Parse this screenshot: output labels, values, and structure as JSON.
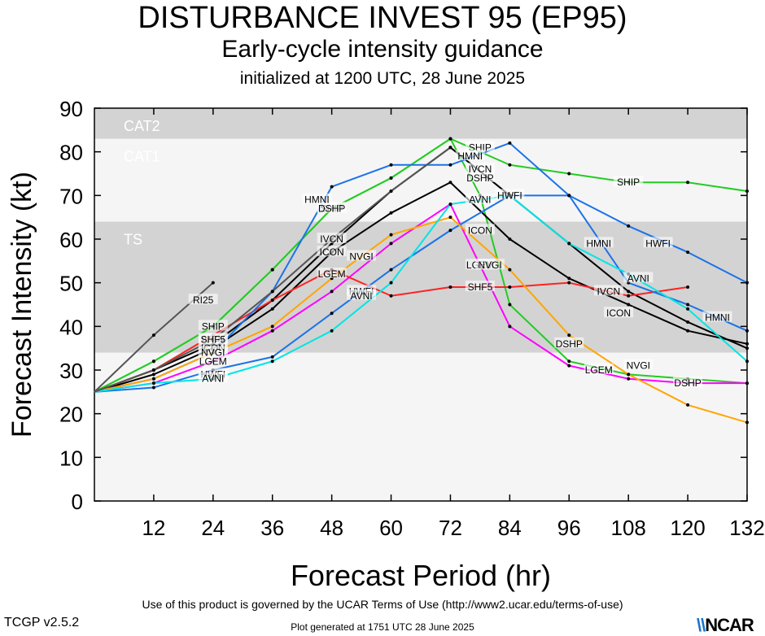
{
  "header": {
    "title": "DISTURBANCE INVEST 95 (EP95)",
    "subtitle": "Early-cycle intensity guidance",
    "init": "initialized at 1200 UTC, 28 June 2025"
  },
  "footer": {
    "terms": "Use of this product is governed by the UCAR Terms of Use (http://www2.ucar.edu/terms-of-use)",
    "version": "TCGP v2.5.2",
    "generated": "Plot generated at 1751 UTC   28 June 2025",
    "logo": "NCAR"
  },
  "chart_data": {
    "type": "line",
    "xlabel": "Forecast Period (hr)",
    "ylabel": "Forecast Intensity (kt)",
    "xlim": [
      0,
      132
    ],
    "ylim": [
      0,
      90
    ],
    "xticks": [
      12,
      24,
      36,
      48,
      60,
      72,
      84,
      96,
      108,
      120,
      132
    ],
    "yticks": [
      0,
      10,
      20,
      30,
      40,
      50,
      60,
      70,
      80,
      90
    ],
    "bands": [
      {
        "label": "TS",
        "from": 34,
        "to": 64,
        "color": "#d3d3d3"
      },
      {
        "label": "CAT1",
        "from": 64,
        "to": 83,
        "color": "#f5f5f5"
      },
      {
        "label": "CAT2",
        "from": 83,
        "to": 90,
        "color": "#d3d3d3"
      }
    ],
    "series": [
      {
        "name": "SHIP",
        "color": "#22cc22",
        "labels": [
          [
            24,
            40
          ],
          [
            48,
            67
          ],
          [
            78,
            81
          ],
          [
            108,
            73
          ]
        ],
        "points": [
          [
            0,
            25
          ],
          [
            12,
            32
          ],
          [
            24,
            40
          ],
          [
            36,
            53
          ],
          [
            48,
            67
          ],
          [
            60,
            74
          ],
          [
            72,
            83
          ],
          [
            84,
            77
          ],
          [
            96,
            75
          ],
          [
            108,
            73
          ],
          [
            120,
            73
          ],
          [
            132,
            71
          ]
        ]
      },
      {
        "name": "DSHP",
        "color": "#22cc22",
        "labels": [
          [
            48,
            67
          ],
          [
            78,
            74
          ],
          [
            96,
            36
          ],
          [
            120,
            27
          ]
        ],
        "points": [
          [
            0,
            25
          ],
          [
            12,
            32
          ],
          [
            24,
            40
          ],
          [
            36,
            53
          ],
          [
            48,
            67
          ],
          [
            60,
            74
          ],
          [
            72,
            83
          ],
          [
            78,
            70
          ],
          [
            84,
            45
          ],
          [
            96,
            32
          ],
          [
            108,
            29
          ],
          [
            120,
            28
          ],
          [
            132,
            27
          ]
        ]
      },
      {
        "name": "LGEM",
        "color": "#ff00ff",
        "labels": [
          [
            24,
            32
          ],
          [
            48,
            52
          ],
          [
            78,
            54
          ],
          [
            102,
            30
          ]
        ],
        "points": [
          [
            0,
            25
          ],
          [
            12,
            27
          ],
          [
            24,
            32
          ],
          [
            36,
            39
          ],
          [
            48,
            48
          ],
          [
            60,
            59
          ],
          [
            72,
            68
          ],
          [
            84,
            40
          ],
          [
            96,
            31
          ],
          [
            108,
            28
          ],
          [
            120,
            27
          ],
          [
            132,
            27
          ]
        ]
      },
      {
        "name": "IVCN",
        "color": "#000000",
        "labels": [
          [
            24,
            37
          ],
          [
            48,
            60
          ],
          [
            78,
            76
          ],
          [
            104,
            48
          ]
        ],
        "points": [
          [
            0,
            25
          ],
          [
            12,
            30
          ],
          [
            24,
            36
          ],
          [
            36,
            46
          ],
          [
            48,
            59
          ],
          [
            60,
            71
          ],
          [
            72,
            81
          ],
          [
            84,
            70
          ],
          [
            96,
            59
          ],
          [
            108,
            48
          ],
          [
            120,
            41
          ],
          [
            132,
            35
          ]
        ]
      },
      {
        "name": "ICON",
        "color": "#000000",
        "labels": [
          [
            24,
            35
          ],
          [
            48,
            57
          ],
          [
            78,
            62
          ],
          [
            106,
            43
          ]
        ],
        "points": [
          [
            0,
            25
          ],
          [
            12,
            29
          ],
          [
            24,
            35
          ],
          [
            36,
            44
          ],
          [
            48,
            57
          ],
          [
            60,
            66
          ],
          [
            72,
            73
          ],
          [
            84,
            60
          ],
          [
            96,
            51
          ],
          [
            108,
            45
          ],
          [
            120,
            39
          ],
          [
            132,
            36
          ]
        ]
      },
      {
        "name": "SHF5",
        "color": "#ff2222",
        "labels": [
          [
            24,
            37
          ],
          [
            78,
            49
          ]
        ],
        "points": [
          [
            0,
            25
          ],
          [
            12,
            30
          ],
          [
            24,
            38
          ],
          [
            36,
            46
          ],
          [
            48,
            53
          ],
          [
            60,
            47
          ],
          [
            72,
            49
          ],
          [
            84,
            49
          ],
          [
            96,
            50
          ],
          [
            108,
            47
          ],
          [
            120,
            49
          ]
        ]
      },
      {
        "name": "HWFI",
        "color": "#1a73e8",
        "labels": [
          [
            24,
            29
          ],
          [
            54,
            48
          ],
          [
            84,
            70
          ],
          [
            114,
            59
          ]
        ],
        "points": [
          [
            0,
            25
          ],
          [
            12,
            26
          ],
          [
            24,
            30
          ],
          [
            36,
            33
          ],
          [
            48,
            43
          ],
          [
            60,
            53
          ],
          [
            72,
            62
          ],
          [
            84,
            70
          ],
          [
            96,
            70
          ],
          [
            108,
            63
          ],
          [
            120,
            57
          ],
          [
            132,
            50
          ]
        ]
      },
      {
        "name": "HMNI",
        "color": "#1a73e8",
        "labels": [
          [
            45,
            69
          ],
          [
            76,
            79
          ],
          [
            102,
            59
          ],
          [
            126,
            42
          ]
        ],
        "points": [
          [
            0,
            25
          ],
          [
            12,
            28
          ],
          [
            24,
            34
          ],
          [
            36,
            48
          ],
          [
            48,
            72
          ],
          [
            60,
            77
          ],
          [
            72,
            77
          ],
          [
            84,
            82
          ],
          [
            96,
            70
          ],
          [
            108,
            50
          ],
          [
            120,
            45
          ],
          [
            132,
            39
          ]
        ]
      },
      {
        "name": "NVGI",
        "color": "#ffa500",
        "labels": [
          [
            24,
            34
          ],
          [
            54,
            56
          ],
          [
            80,
            54
          ],
          [
            110,
            31
          ]
        ],
        "points": [
          [
            0,
            25
          ],
          [
            12,
            28
          ],
          [
            24,
            34
          ],
          [
            36,
            40
          ],
          [
            48,
            51
          ],
          [
            60,
            61
          ],
          [
            72,
            65
          ],
          [
            84,
            53
          ],
          [
            96,
            38
          ],
          [
            108,
            29
          ],
          [
            120,
            22
          ],
          [
            132,
            18
          ]
        ]
      },
      {
        "name": "AVNI",
        "color": "#00e5e5",
        "labels": [
          [
            24,
            28
          ],
          [
            54,
            47
          ],
          [
            78,
            69
          ],
          [
            110,
            51
          ]
        ],
        "points": [
          [
            0,
            25
          ],
          [
            12,
            27
          ],
          [
            24,
            28
          ],
          [
            36,
            32
          ],
          [
            48,
            39
          ],
          [
            60,
            50
          ],
          [
            72,
            68
          ],
          [
            84,
            70
          ],
          [
            96,
            59
          ],
          [
            108,
            52
          ],
          [
            120,
            44
          ],
          [
            132,
            32
          ]
        ]
      },
      {
        "name": "RI25",
        "color": "#555555",
        "labels": [
          [
            22,
            46
          ]
        ],
        "points": [
          [
            0,
            25
          ],
          [
            12,
            38
          ],
          [
            24,
            50
          ]
        ]
      },
      {
        "name": "SHIP",
        "color": "#555555",
        "labels": [],
        "points": [
          [
            0,
            25
          ],
          [
            12,
            30
          ],
          [
            24,
            37
          ],
          [
            36,
            48
          ],
          [
            48,
            60
          ],
          [
            60,
            71
          ],
          [
            72,
            81
          ]
        ]
      }
    ]
  }
}
